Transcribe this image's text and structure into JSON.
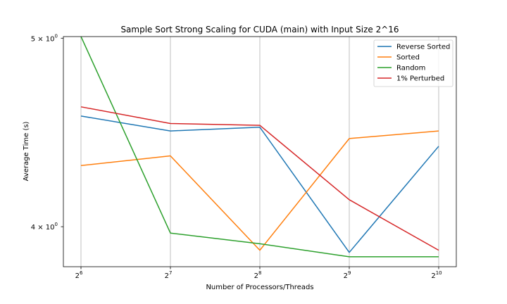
{
  "chart_data": {
    "type": "line",
    "title": "Sample Sort Strong Scaling for CUDA (main) with Input Size 2^16",
    "xlabel": "Number of Processors/Threads",
    "ylabel": "Average Time (s)",
    "x": [
      64,
      128,
      256,
      512,
      1024
    ],
    "x_ticks": [
      {
        "base": "2",
        "exp": "6"
      },
      {
        "base": "2",
        "exp": "7"
      },
      {
        "base": "2",
        "exp": "8"
      },
      {
        "base": "2",
        "exp": "9"
      },
      {
        "base": "2",
        "exp": "10"
      }
    ],
    "x_scale": "log2",
    "y_scale": "log",
    "ylim": [
      3.815,
      5.0096
    ],
    "y_ticks": [
      {
        "value": 5.0,
        "label": "5 × 10",
        "exp": "0"
      },
      {
        "value": 4.0,
        "label": "4 × 10",
        "exp": "0"
      }
    ],
    "grid": "x-only",
    "legend_position": "top-right",
    "series": [
      {
        "name": "Reverse Sorted",
        "color": "#1f77b4",
        "values": [
          4.56,
          4.48,
          4.5,
          3.88,
          4.4
        ]
      },
      {
        "name": "Sorted",
        "color": "#ff7f0e",
        "values": [
          4.3,
          4.35,
          3.89,
          4.44,
          4.48
        ]
      },
      {
        "name": "Random",
        "color": "#2ca02c",
        "values": [
          5.01,
          3.97,
          3.92,
          3.86,
          3.86
        ]
      },
      {
        "name": "1% Perturbed",
        "color": "#d62728",
        "values": [
          4.61,
          4.52,
          4.51,
          4.13,
          3.89
        ]
      }
    ]
  }
}
